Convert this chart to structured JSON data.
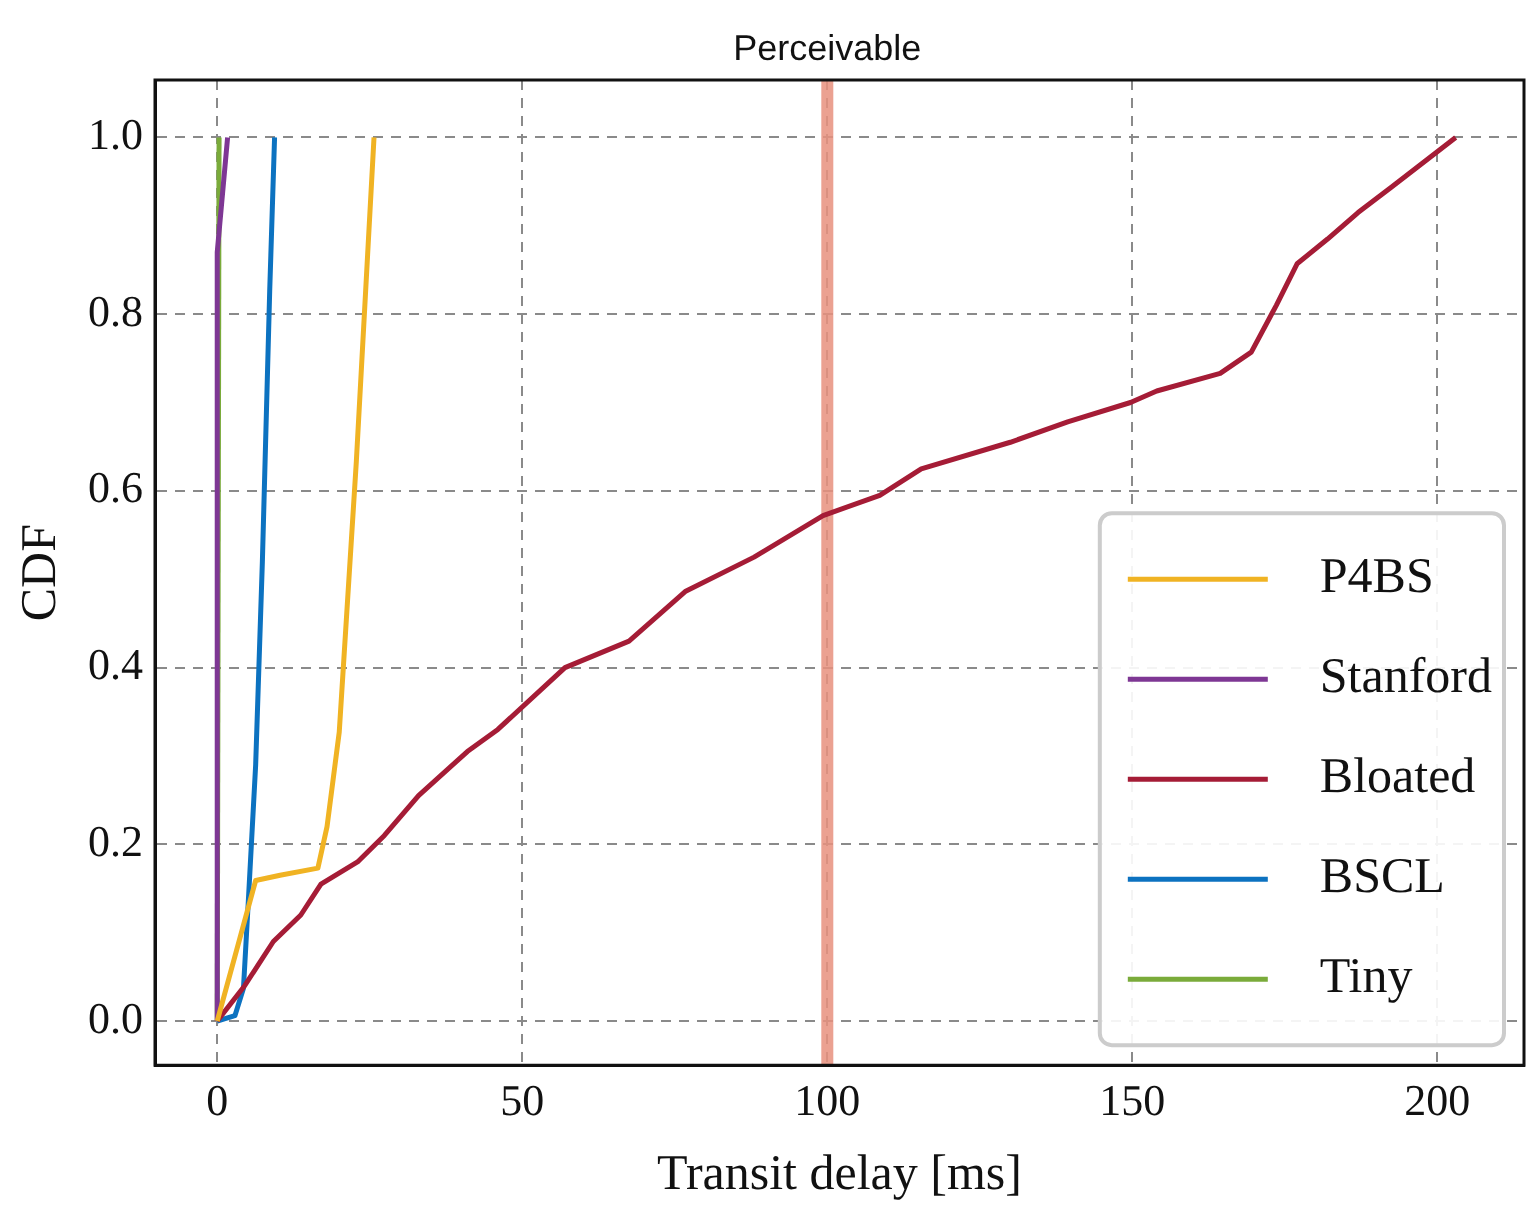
{
  "chart_data": {
    "type": "line",
    "xlabel": "Transit delay [ms]",
    "ylabel": "CDF",
    "xlim": [
      -10.2,
      214.2
    ],
    "ylim": [
      -0.05,
      1.065
    ],
    "xticks": [
      0,
      50,
      100,
      150,
      200
    ],
    "yticks": [
      {
        "value": 0,
        "label": "0.0"
      },
      {
        "value": 0.2,
        "label": "0.2"
      },
      {
        "value": 0.4,
        "label": "0.4"
      },
      {
        "value": 0.6,
        "label": "0.6"
      },
      {
        "value": 0.8,
        "label": "0.8"
      },
      {
        "value": 1,
        "label": "1.0"
      }
    ],
    "grid": true,
    "legend": "bottom right",
    "line_style": "solid",
    "marker": "none",
    "ref_lines": [
      {
        "axis": "x",
        "value": 100,
        "label": "Perceivable",
        "color": "#e8907e"
      }
    ],
    "series": [
      {
        "name": "P4BS",
        "color": "#f0b323",
        "x": [
          0,
          6.3,
          10.3,
          16.5,
          18,
          20,
          22.8,
          25.7
        ],
        "values": [
          0,
          0.159,
          0.165,
          0.173,
          0.22,
          0.327,
          0.633,
          1.0
        ]
      },
      {
        "name": "Stanford",
        "color": "#7e3794",
        "x": [
          0,
          0,
          1.7
        ],
        "values": [
          0,
          0.87,
          1.0
        ]
      },
      {
        "name": "Bloated",
        "color": "#a51c36",
        "x": [
          0,
          4.5,
          9.2,
          13.7,
          17,
          23,
          27.4,
          33,
          41,
          46,
          57,
          67.5,
          76.7,
          88,
          99.3,
          108.6,
          115.4,
          130,
          139.4,
          149.7,
          154,
          164.4,
          169.5,
          173.6,
          177,
          182,
          187,
          192.5,
          203
        ],
        "values": [
          0,
          0.04,
          0.09,
          0.12,
          0.155,
          0.18,
          0.21,
          0.255,
          0.305,
          0.33,
          0.4,
          0.43,
          0.486,
          0.525,
          0.572,
          0.595,
          0.625,
          0.655,
          0.678,
          0.7,
          0.713,
          0.733,
          0.757,
          0.81,
          0.857,
          0.885,
          0.915,
          0.944,
          1.0
        ]
      },
      {
        "name": "BSCL",
        "color": "#0c72c0",
        "x": [
          0,
          2.9,
          4.3,
          5.1,
          6.3,
          7.4,
          8.6,
          9.4
        ],
        "values": [
          0,
          0.006,
          0.037,
          0.136,
          0.29,
          0.52,
          0.826,
          1.0
        ]
      },
      {
        "name": "Tiny",
        "color": "#7aab3a",
        "x": [
          0,
          0.3
        ],
        "values": [
          0,
          1.0
        ]
      }
    ]
  }
}
